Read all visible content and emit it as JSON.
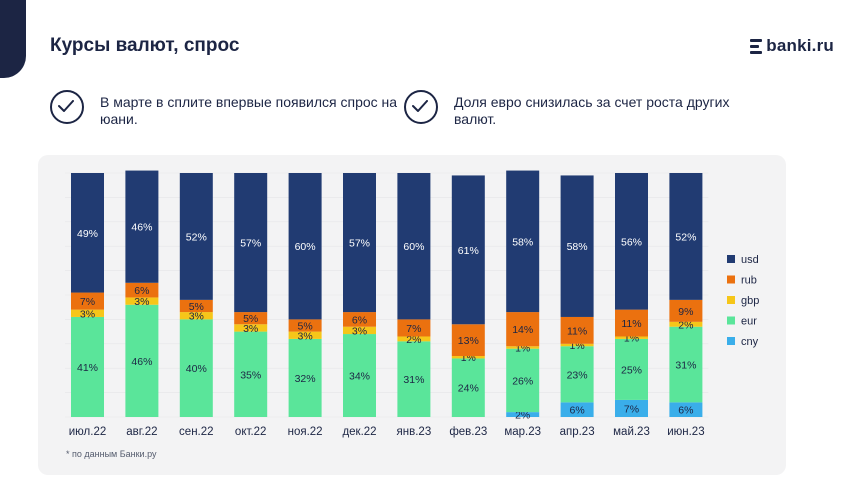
{
  "header": {
    "title": "Курсы валют, спрос",
    "logo_text": "banki.ru"
  },
  "notes": [
    {
      "icon": "check-circle-icon",
      "text": "В марте в сплите впервые появился спрос на юани."
    },
    {
      "icon": "check-circle-icon",
      "text": "Доля евро снизилась за счет роста других валют."
    }
  ],
  "footnote": "* по данным Банки.ру",
  "colors": {
    "usd": "#213b72",
    "rub": "#eb710f",
    "gbp": "#f6c619",
    "eur": "#5ae59a",
    "cny": "#3aaeea",
    "panel": "#f3f3f4",
    "dark": "#1c2544"
  },
  "chart_data": {
    "type": "bar",
    "stacked": true,
    "percent_stacked": true,
    "categories": [
      "июл.22",
      "авг.22",
      "сен.22",
      "окт.22",
      "ноя.22",
      "дек.22",
      "янв.23",
      "фев.23",
      "мар.23",
      "апр.23",
      "май.23",
      "июн.23"
    ],
    "series": [
      {
        "name": "cny",
        "color": "#3aaeea",
        "values": [
          0,
          0,
          0,
          0,
          0,
          0,
          0,
          0,
          2,
          6,
          7,
          6
        ]
      },
      {
        "name": "eur",
        "color": "#5ae59a",
        "values": [
          41,
          46,
          40,
          35,
          32,
          34,
          31,
          24,
          26,
          23,
          25,
          31
        ]
      },
      {
        "name": "gbp",
        "color": "#f6c619",
        "values": [
          3,
          3,
          3,
          3,
          3,
          3,
          2,
          1,
          1,
          1,
          1,
          2
        ]
      },
      {
        "name": "rub",
        "color": "#eb710f",
        "values": [
          7,
          6,
          5,
          5,
          5,
          6,
          7,
          13,
          14,
          11,
          11,
          9
        ]
      },
      {
        "name": "usd",
        "color": "#213b72",
        "values": [
          49,
          46,
          52,
          57,
          60,
          57,
          60,
          61,
          58,
          58,
          56,
          52
        ]
      }
    ],
    "legend_order": [
      "usd",
      "rub",
      "gbp",
      "eur",
      "cny"
    ],
    "legend_position": "right",
    "value_suffix": "%",
    "ylim": [
      0,
      100
    ]
  }
}
